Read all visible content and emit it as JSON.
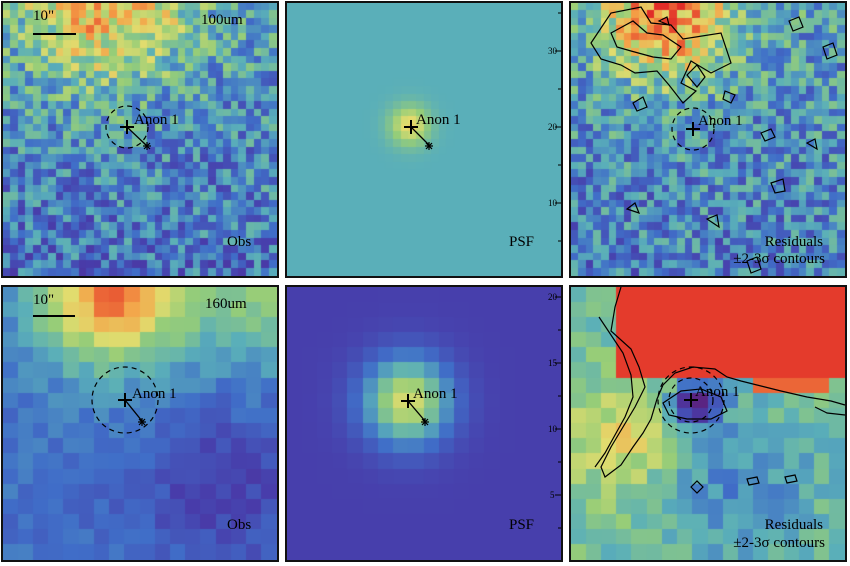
{
  "panels": [
    {
      "id": "p1",
      "band_label": "100um",
      "scale_label": "10\"",
      "source_label": "Anon 1",
      "corner_label": "Obs",
      "colormap": "obs100"
    },
    {
      "id": "p2",
      "band_label": "",
      "scale_label": "",
      "source_label": "Anon 1",
      "corner_label": "PSF",
      "colormap": "psf100",
      "axis_ticks": [
        "30",
        "20",
        "10"
      ]
    },
    {
      "id": "p3",
      "band_label": "",
      "scale_label": "",
      "source_label": "Anon 1",
      "corner_label": "Residuals",
      "corner_label2": "±2-3σ contours",
      "colormap": "res100"
    },
    {
      "id": "p4",
      "band_label": "160um",
      "scale_label": "10\"",
      "source_label": "Anon 1",
      "corner_label": "Obs",
      "colormap": "obs160"
    },
    {
      "id": "p5",
      "band_label": "",
      "scale_label": "",
      "source_label": "Anon 1",
      "corner_label": "PSF",
      "colormap": "psf160",
      "axis_ticks": [
        "20",
        "15",
        "10",
        "5"
      ]
    },
    {
      "id": "p6",
      "band_label": "",
      "scale_label": "",
      "source_label": "Anon 1",
      "corner_label": "Residuals",
      "corner_label2": "±2-3σ contours",
      "colormap": "res160"
    }
  ],
  "colors": {
    "frame": "#111111",
    "psf100_bg": "#5fb5ad",
    "psf160_bg": "#3b3f9e",
    "residual_red": "#e0302a"
  }
}
